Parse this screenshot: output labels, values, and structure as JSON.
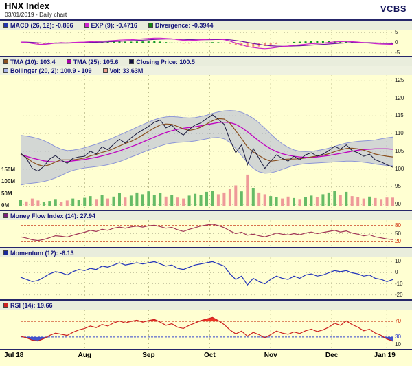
{
  "header": {
    "title": "HNX Index",
    "subtitle": "03/01/2019 - Daily chart",
    "brand": "VCBS"
  },
  "colors": {
    "background": "#ffffd2",
    "grid_v": "#b5b584",
    "grid_h": "#c9c9a3",
    "macd_line": "#cc22cc",
    "exp_line": "#7711aa",
    "hist_up": "#119922",
    "hist_down": "#ee8877",
    "close": "#1a1a3e",
    "tma10": "#8a5020",
    "tma25": "#c000c0",
    "boll_fill": "rgba(140,150,215,0.38)",
    "boll_edge": "#8b94d6",
    "vol_up": "#66bb66",
    "vol_down": "#ee9999",
    "mfi": "#a03355",
    "momentum": "#2233bb",
    "rsi": "#cc2222",
    "rsi_over_fill": "#ee3322",
    "rsi_under_fill": "#4455cc",
    "ref_red": "#cc4422",
    "ref_blue": "#3344cc"
  },
  "panels": {
    "macd": {
      "legend": [
        {
          "label": "MACD (26, 12): -0.866",
          "color": "#2233aa"
        },
        {
          "label": "EXP (9): -0.4716",
          "color": "#cc22cc"
        },
        {
          "label": "Divergence: -0.3944",
          "color": "#118811"
        }
      ],
      "axis": [
        {
          "v": 5,
          "label": "5"
        },
        {
          "v": 0,
          "label": "0"
        },
        {
          "v": -5,
          "label": "-5"
        }
      ]
    },
    "price": {
      "legend_row1": [
        {
          "label": "TMA (10): 103.4",
          "color": "#8a5020"
        },
        {
          "label": "TMA (25): 105.6",
          "color": "#aa00aa"
        },
        {
          "label": "Closing Price: 100.5",
          "color": "#101040"
        }
      ],
      "legend_row2": [
        {
          "label": "Bollinger (20, 2): 100.9 - 109",
          "color": "#aab4e8"
        },
        {
          "label": "Vol: 33.63M",
          "color": "#f0a090"
        }
      ],
      "axis_right": [
        {
          "v": 125,
          "label": "125"
        },
        {
          "v": 120,
          "label": "120"
        },
        {
          "v": 115,
          "label": "115"
        },
        {
          "v": 110,
          "label": "110"
        },
        {
          "v": 105,
          "label": "105"
        },
        {
          "v": 100,
          "label": "100"
        },
        {
          "v": 95,
          "label": "95"
        },
        {
          "v": 90,
          "label": "90"
        }
      ],
      "axis_left_volume": [
        {
          "v": 150,
          "label": "150M"
        },
        {
          "v": 100,
          "label": "100M"
        },
        {
          "v": 50,
          "label": "50M"
        },
        {
          "v": 0,
          "label": "0M"
        }
      ]
    },
    "mfi": {
      "legend": [
        {
          "label": "Money Flow Index (14): 27.94",
          "color": "#7a1f7a"
        }
      ],
      "axis": [
        {
          "v": 80,
          "label": "80",
          "color": "#cc2200"
        },
        {
          "v": 50,
          "label": "50"
        },
        {
          "v": 20,
          "label": "20",
          "color": "#cc2200"
        }
      ]
    },
    "momentum": {
      "legend": [
        {
          "label": "Momentum (12): -6.13",
          "color": "#1a2a9a"
        }
      ],
      "axis": [
        {
          "v": 10,
          "label": "10"
        },
        {
          "v": 0,
          "label": "0"
        },
        {
          "v": -10,
          "label": "-10"
        },
        {
          "v": -20,
          "label": "-20"
        }
      ]
    },
    "rsi": {
      "legend": [
        {
          "label": "RSI (14): 19.66",
          "color": "#cc2222"
        }
      ],
      "axis": [
        {
          "v": 70,
          "label": "70",
          "color": "#cc2200"
        },
        {
          "v": 30,
          "label": "30",
          "color": "#2233cc"
        },
        {
          "v": 10,
          "label": "10"
        }
      ]
    }
  },
  "chart_data": {
    "type": "line",
    "title": "HNX Index - Daily chart",
    "x_months": [
      {
        "label": "Jul 18",
        "f": 0.0
      },
      {
        "label": "Aug",
        "f": 0.172
      },
      {
        "label": "Sep",
        "f": 0.344
      },
      {
        "label": "Oct",
        "f": 0.508
      },
      {
        "label": "Nov",
        "f": 0.672
      },
      {
        "label": "Dec",
        "f": 0.836
      },
      {
        "label": "Jan 19",
        "f": 0.984
      }
    ],
    "n_points": 65,
    "price": {
      "ylim": [
        88.5,
        126.5
      ],
      "close": [
        104.5,
        103.0,
        100.2,
        99.4,
        100.8,
        102.8,
        103.8,
        102.5,
        101.6,
        103.0,
        103.4,
        103.6,
        105.0,
        104.2,
        106.3,
        105.4,
        107.0,
        108.4,
        107.3,
        108.8,
        110.0,
        111.0,
        112.0,
        113.2,
        113.8,
        111.6,
        112.4,
        110.6,
        109.6,
        111.2,
        112.4,
        113.0,
        114.2,
        115.3,
        114.0,
        112.6,
        108.2,
        104.6,
        106.8,
        101.2,
        105.8,
        103.0,
        100.2,
        102.2,
        104.0,
        103.0,
        102.2,
        103.6,
        102.6,
        104.0,
        104.6,
        103.6,
        104.2,
        105.2,
        106.4,
        105.6,
        106.8,
        105.2,
        104.6,
        103.6,
        104.2,
        102.6,
        102.0,
        101.2,
        100.5
      ],
      "tma10": [
        104.2,
        103.2,
        102.0,
        101.2,
        100.8,
        101.2,
        102.0,
        102.6,
        102.6,
        102.6,
        102.8,
        103.1,
        103.7,
        104.1,
        104.7,
        105.1,
        105.8,
        106.5,
        107.2,
        107.8,
        108.6,
        109.6,
        110.6,
        111.6,
        112.4,
        112.7,
        112.6,
        112.0,
        111.3,
        110.9,
        111.2,
        111.8,
        112.7,
        113.6,
        114.2,
        114.1,
        112.9,
        110.8,
        108.6,
        106.2,
        104.8,
        103.8,
        102.8,
        102.2,
        102.4,
        102.7,
        102.8,
        102.8,
        102.9,
        103.1,
        103.4,
        103.7,
        103.9,
        104.3,
        104.9,
        105.4,
        105.8,
        105.9,
        105.7,
        105.3,
        104.8,
        104.2,
        103.9,
        103.6,
        103.4
      ],
      "tma25": [
        104.0,
        103.6,
        103.1,
        102.7,
        102.3,
        102.1,
        102.0,
        102.0,
        102.1,
        102.3,
        102.5,
        102.7,
        103.0,
        103.3,
        103.7,
        104.1,
        104.6,
        105.1,
        105.7,
        106.3,
        106.9,
        107.6,
        108.3,
        109.0,
        109.7,
        110.3,
        110.8,
        111.2,
        111.5,
        111.7,
        111.9,
        112.2,
        112.5,
        112.8,
        113.1,
        113.2,
        113.1,
        112.6,
        111.7,
        110.5,
        109.2,
        107.9,
        106.7,
        105.7,
        104.9,
        104.3,
        103.9,
        103.6,
        103.4,
        103.3,
        103.3,
        103.4,
        103.6,
        103.8,
        104.1,
        104.4,
        104.7,
        105.0,
        105.3,
        105.5,
        105.6,
        105.7,
        105.7,
        105.7,
        105.6
      ],
      "boll_upper": [
        109.5,
        109.3,
        109.0,
        108.6,
        108.0,
        107.2,
        106.3,
        105.6,
        105.2,
        105.3,
        105.6,
        106.0,
        106.5,
        107.0,
        107.6,
        108.2,
        108.9,
        109.6,
        110.3,
        111.0,
        111.8,
        112.5,
        113.2,
        113.9,
        114.4,
        114.7,
        114.8,
        114.7,
        114.5,
        114.4,
        114.5,
        114.8,
        115.2,
        115.7,
        116.1,
        116.4,
        116.5,
        116.4,
        116.0,
        115.3,
        114.3,
        113.0,
        111.5,
        109.9,
        108.4,
        107.1,
        106.1,
        105.4,
        105.0,
        104.9,
        105.0,
        105.2,
        105.5,
        105.9,
        106.4,
        106.9,
        107.3,
        107.6,
        107.8,
        107.9,
        108.0,
        108.2,
        108.5,
        108.8,
        109.0
      ],
      "boll_lower": [
        95.5,
        95.8,
        96.0,
        96.2,
        96.5,
        96.9,
        97.5,
        98.2,
        99.0,
        99.6,
        100.0,
        100.3,
        100.5,
        100.7,
        100.9,
        101.2,
        101.6,
        102.1,
        102.7,
        103.4,
        104.0,
        104.7,
        105.3,
        105.9,
        106.5,
        107.0,
        107.3,
        107.5,
        107.6,
        107.7,
        107.9,
        108.2,
        108.5,
        108.8,
        108.9,
        108.5,
        107.5,
        105.8,
        103.8,
        101.8,
        100.2,
        99.2,
        98.8,
        98.9,
        99.3,
        99.9,
        100.5,
        101.0,
        101.3,
        101.5,
        101.6,
        101.7,
        101.8,
        101.9,
        102.0,
        102.1,
        102.2,
        102.2,
        102.1,
        101.9,
        101.7,
        101.4,
        101.2,
        101.0,
        100.9
      ],
      "volume_m": [
        25,
        18,
        30,
        22,
        15,
        20,
        28,
        17,
        22,
        30,
        26,
        33,
        40,
        28,
        45,
        30,
        38,
        52,
        34,
        42,
        55,
        48,
        60,
        45,
        52,
        38,
        46,
        34,
        30,
        42,
        50,
        44,
        58,
        62,
        48,
        55,
        70,
        85,
        60,
        130,
        75,
        55,
        48,
        40,
        35,
        30,
        38,
        32,
        28,
        35,
        42,
        36,
        48,
        55,
        62,
        45,
        58,
        40,
        35,
        30,
        38,
        32,
        28,
        34,
        33.63
      ],
      "vol_max_m": 150
    },
    "macd": {
      "ylim": [
        -6.5,
        6.5
      ],
      "macd": [
        0.3,
        0.1,
        -0.4,
        -0.8,
        -0.9,
        -0.6,
        -0.2,
        0.0,
        -0.1,
        0.1,
        0.2,
        0.3,
        0.5,
        0.6,
        0.8,
        0.9,
        1.1,
        1.3,
        1.4,
        1.5,
        1.7,
        1.9,
        2.1,
        2.3,
        2.3,
        2.1,
        1.9,
        1.5,
        1.2,
        1.1,
        1.2,
        1.4,
        1.6,
        1.8,
        1.8,
        1.5,
        0.8,
        -0.2,
        -1.0,
        -2.0,
        -2.4,
        -2.8,
        -3.0,
        -2.8,
        -2.4,
        -2.0,
        -1.7,
        -1.3,
        -1.1,
        -0.8,
        -0.5,
        -0.4,
        -0.2,
        0.1,
        0.4,
        0.5,
        0.6,
        0.5,
        0.3,
        0.0,
        -0.2,
        -0.5,
        -0.7,
        -0.8,
        -0.866
      ],
      "signal": [
        0.3,
        0.26,
        0.13,
        -0.06,
        -0.23,
        -0.3,
        -0.28,
        -0.22,
        -0.2,
        -0.14,
        -0.07,
        0.0,
        0.1,
        0.2,
        0.32,
        0.44,
        0.57,
        0.72,
        0.86,
        0.99,
        1.13,
        1.28,
        1.44,
        1.61,
        1.75,
        1.82,
        1.84,
        1.77,
        1.66,
        1.55,
        1.48,
        1.46,
        1.49,
        1.55,
        1.6,
        1.58,
        1.42,
        1.09,
        0.67,
        0.14,
        -0.37,
        -0.86,
        -1.29,
        -1.59,
        -1.75,
        -1.8,
        -1.78,
        -1.68,
        -1.57,
        -1.42,
        -1.23,
        -1.07,
        -0.9,
        -0.7,
        -0.48,
        -0.28,
        -0.1,
        0.02,
        0.08,
        0.06,
        0.01,
        -0.09,
        -0.22,
        -0.34,
        -0.4716
      ]
    },
    "mfi": {
      "ylim": [
        0,
        100
      ],
      "ref": [
        80,
        20
      ],
      "values": [
        38,
        33,
        27,
        24,
        28,
        35,
        42,
        40,
        37,
        44,
        50,
        55,
        62,
        58,
        66,
        62,
        70,
        74,
        70,
        75,
        78,
        74,
        79,
        81,
        76,
        70,
        73,
        64,
        58,
        66,
        72,
        78,
        82,
        85,
        80,
        72,
        60,
        50,
        55,
        44,
        48,
        42,
        38,
        44,
        52,
        48,
        45,
        50,
        46,
        52,
        56,
        50,
        54,
        58,
        62,
        56,
        60,
        52,
        48,
        42,
        46,
        38,
        34,
        30,
        27.94
      ]
    },
    "momentum": {
      "ylim": [
        -24,
        14
      ],
      "values": [
        -4,
        -6,
        -8,
        -7,
        -4,
        -1,
        1,
        0,
        -2,
        1,
        3,
        2,
        4,
        3,
        6,
        5,
        7,
        9,
        7,
        8,
        9,
        8,
        9,
        10,
        8,
        6,
        7,
        4,
        3,
        5,
        7,
        8,
        9,
        10,
        8,
        6,
        -1,
        -6,
        -3,
        -11,
        -5,
        -8,
        -10,
        -6,
        -3,
        -5,
        -6,
        -3,
        -5,
        -2,
        -1,
        -3,
        -2,
        0,
        2,
        1,
        2,
        0,
        -1,
        -3,
        -2,
        -5,
        -6,
        -8,
        -6.13
      ],
      "ref": [
        10,
        0,
        -10,
        -20
      ]
    },
    "rsi": {
      "ylim": [
        0,
        100
      ],
      "overbought": 70,
      "oversold": 30,
      "values": [
        32,
        28,
        22,
        20,
        26,
        34,
        40,
        37,
        34,
        42,
        48,
        52,
        58,
        54,
        62,
        58,
        66,
        71,
        66,
        70,
        73,
        68,
        72,
        75,
        68,
        60,
        64,
        55,
        52,
        60,
        66,
        72,
        76,
        80,
        72,
        62,
        48,
        38,
        45,
        32,
        42,
        36,
        28,
        36,
        45,
        40,
        37,
        43,
        39,
        46,
        50,
        44,
        48,
        55,
        65,
        60,
        71,
        62,
        55,
        46,
        50,
        40,
        34,
        25,
        19.66
      ]
    }
  }
}
